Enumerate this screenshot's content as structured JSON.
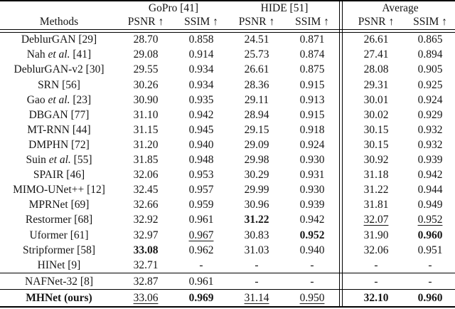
{
  "page": {
    "background": "#ffffff",
    "text_color": "#161616",
    "rule_color": "#000000"
  },
  "table": {
    "col_groups": [
      {
        "label": "",
        "span": 1
      },
      {
        "label": "GoPro [41]",
        "span": 2
      },
      {
        "label": "HIDE [51]",
        "span": 2
      },
      {
        "label": "Average",
        "span": 2
      }
    ],
    "sub_headers": [
      "Methods",
      "PSNR ↑",
      "SSIM ↑",
      "PSNR ↑",
      "SSIM ↑",
      "PSNR ↑",
      "SSIM ↑"
    ],
    "sections": [
      {
        "rows": [
          {
            "method": {
              "pre": "DeblurGAN [29]"
            },
            "values": [
              {
                "t": "28.70"
              },
              {
                "t": "0.858"
              },
              {
                "t": "24.51"
              },
              {
                "t": "0.871"
              },
              {
                "t": "26.61"
              },
              {
                "t": "0.865"
              }
            ]
          },
          {
            "method": {
              "pre": "Nah ",
              "it": "et al.",
              "post": " [41]"
            },
            "values": [
              {
                "t": "29.08"
              },
              {
                "t": "0.914"
              },
              {
                "t": "25.73"
              },
              {
                "t": "0.874"
              },
              {
                "t": "27.41"
              },
              {
                "t": "0.894"
              }
            ]
          },
          {
            "method": {
              "pre": "DeblurGAN-v2 [30]"
            },
            "values": [
              {
                "t": "29.55"
              },
              {
                "t": "0.934"
              },
              {
                "t": "26.61"
              },
              {
                "t": "0.875"
              },
              {
                "t": "28.08"
              },
              {
                "t": "0.905"
              }
            ]
          },
          {
            "method": {
              "pre": "SRN [56]"
            },
            "values": [
              {
                "t": "30.26"
              },
              {
                "t": "0.934"
              },
              {
                "t": "28.36"
              },
              {
                "t": "0.915"
              },
              {
                "t": "29.31"
              },
              {
                "t": "0.925"
              }
            ]
          },
          {
            "method": {
              "pre": "Gao ",
              "it": "et al.",
              "post": " [23]"
            },
            "values": [
              {
                "t": "30.90"
              },
              {
                "t": "0.935"
              },
              {
                "t": "29.11"
              },
              {
                "t": "0.913"
              },
              {
                "t": "30.01"
              },
              {
                "t": "0.924"
              }
            ]
          },
          {
            "method": {
              "pre": "DBGAN [77]"
            },
            "values": [
              {
                "t": "31.10"
              },
              {
                "t": "0.942"
              },
              {
                "t": "28.94"
              },
              {
                "t": "0.915"
              },
              {
                "t": "30.02"
              },
              {
                "t": "0.929"
              }
            ]
          },
          {
            "method": {
              "pre": "MT-RNN [44]"
            },
            "values": [
              {
                "t": "31.15"
              },
              {
                "t": "0.945"
              },
              {
                "t": "29.15"
              },
              {
                "t": "0.918"
              },
              {
                "t": "30.15"
              },
              {
                "t": "0.932"
              }
            ]
          },
          {
            "method": {
              "pre": "DMPHN [72]"
            },
            "values": [
              {
                "t": "31.20"
              },
              {
                "t": "0.940"
              },
              {
                "t": "29.09"
              },
              {
                "t": "0.924"
              },
              {
                "t": "30.15"
              },
              {
                "t": "0.932"
              }
            ]
          },
          {
            "method": {
              "pre": "Suin ",
              "it": "et al.",
              "post": " [55]"
            },
            "values": [
              {
                "t": "31.85"
              },
              {
                "t": "0.948"
              },
              {
                "t": "29.98"
              },
              {
                "t": "0.930"
              },
              {
                "t": "30.92"
              },
              {
                "t": "0.939"
              }
            ]
          },
          {
            "method": {
              "pre": "SPAIR [46]"
            },
            "values": [
              {
                "t": "32.06"
              },
              {
                "t": "0.953"
              },
              {
                "t": "30.29"
              },
              {
                "t": "0.931"
              },
              {
                "t": "31.18"
              },
              {
                "t": "0.942"
              }
            ]
          },
          {
            "method": {
              "pre": "MIMO-UNet++ [12]"
            },
            "values": [
              {
                "t": "32.45"
              },
              {
                "t": "0.957"
              },
              {
                "t": "29.99"
              },
              {
                "t": "0.930"
              },
              {
                "t": "31.22"
              },
              {
                "t": "0.944"
              }
            ]
          },
          {
            "method": {
              "pre": "MPRNet [69]"
            },
            "values": [
              {
                "t": "32.66"
              },
              {
                "t": "0.959"
              },
              {
                "t": "30.96"
              },
              {
                "t": "0.939"
              },
              {
                "t": "31.81"
              },
              {
                "t": "0.949"
              }
            ]
          },
          {
            "method": {
              "pre": "Restormer [68]"
            },
            "values": [
              {
                "t": "32.92"
              },
              {
                "t": "0.961"
              },
              {
                "t": "31.22",
                "b": true
              },
              {
                "t": "0.942"
              },
              {
                "t": "32.07",
                "u": true
              },
              {
                "t": "0.952",
                "u": true
              }
            ]
          },
          {
            "method": {
              "pre": "Uformer [61]"
            },
            "values": [
              {
                "t": "32.97"
              },
              {
                "t": "0.967",
                "u": true
              },
              {
                "t": "30.83"
              },
              {
                "t": "0.952",
                "b": true
              },
              {
                "t": "31.90"
              },
              {
                "t": "0.960",
                "b": true
              }
            ]
          },
          {
            "method": {
              "pre": "Stripformer [58]"
            },
            "values": [
              {
                "t": "33.08",
                "b": true
              },
              {
                "t": "0.962"
              },
              {
                "t": "31.03"
              },
              {
                "t": "0.940"
              },
              {
                "t": "32.06"
              },
              {
                "t": "0.951"
              }
            ]
          },
          {
            "method": {
              "pre": "HINet [9]"
            },
            "values": [
              {
                "t": "32.71"
              },
              {
                "t": "-"
              },
              {
                "t": "-"
              },
              {
                "t": "-"
              },
              {
                "t": "-"
              },
              {
                "t": "-"
              }
            ]
          }
        ]
      },
      {
        "rows": [
          {
            "method": {
              "pre": "NAFNet-32 [8]"
            },
            "values": [
              {
                "t": "32.87"
              },
              {
                "t": "0.961"
              },
              {
                "t": "-"
              },
              {
                "t": "-"
              },
              {
                "t": "-"
              },
              {
                "t": "-"
              }
            ]
          }
        ]
      },
      {
        "rows": [
          {
            "method": {
              "pre": "MHNet (ours)",
              "bold": true
            },
            "values": [
              {
                "t": "33.06",
                "u": true
              },
              {
                "t": "0.969",
                "b": true
              },
              {
                "t": "31.14",
                "u": true
              },
              {
                "t": "0.950",
                "u": true
              },
              {
                "t": "32.10",
                "b": true
              },
              {
                "t": "0.960",
                "b": true
              }
            ]
          }
        ]
      }
    ]
  }
}
